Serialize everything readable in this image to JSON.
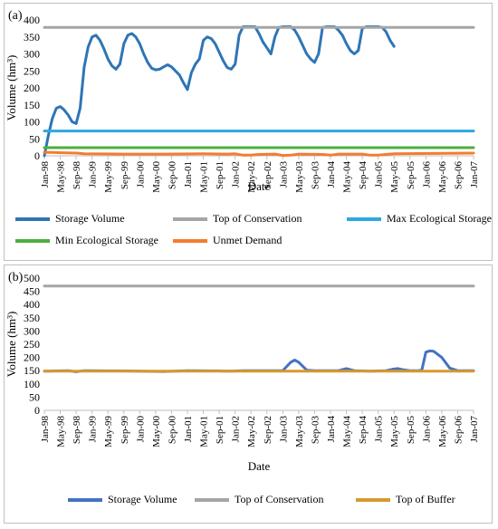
{
  "chart_data": [
    {
      "panel_label": "(a)",
      "type": "line",
      "xlabel": "Date",
      "ylabel": "Volume (hm³)",
      "ylim": [
        0,
        400
      ],
      "yticks": [
        0,
        50,
        100,
        150,
        200,
        250,
        300,
        350,
        400
      ],
      "x_tick_labels": [
        "Jan-98",
        "May-98",
        "Sep-98",
        "Jan-99",
        "May-99",
        "Sep-99",
        "Jan-00",
        "May-00",
        "Sep-00",
        "Jan-01",
        "May-01",
        "Sep-01",
        "Jan-02",
        "May-02",
        "Sep-02",
        "Jan-03",
        "May-03",
        "Sep-03",
        "Jan-04",
        "May-04",
        "Sep-04",
        "Jan-05",
        "May-05",
        "Sep-05",
        "Jan-06",
        "May-06",
        "Sep-06",
        "Jan-07"
      ],
      "grid": false,
      "legend_position": "bottom",
      "series": [
        {
          "name": "Storage Volume",
          "color": "#2e75b6",
          "values": [
            [
              0,
              0
            ],
            [
              1,
              60
            ],
            [
              2,
              110
            ],
            [
              3,
              140
            ],
            [
              4,
              145
            ],
            [
              5,
              135
            ],
            [
              6,
              120
            ],
            [
              7,
              100
            ],
            [
              8,
              95
            ],
            [
              9,
              140
            ],
            [
              10,
              260
            ],
            [
              11,
              320
            ],
            [
              12,
              350
            ],
            [
              13,
              355
            ],
            [
              14,
              340
            ],
            [
              15,
              315
            ],
            [
              16,
              285
            ],
            [
              17,
              265
            ],
            [
              18,
              255
            ],
            [
              19,
              270
            ],
            [
              20,
              330
            ],
            [
              21,
              355
            ],
            [
              22,
              360
            ],
            [
              23,
              350
            ],
            [
              24,
              330
            ],
            [
              25,
              300
            ],
            [
              26,
              275
            ],
            [
              27,
              258
            ],
            [
              28,
              253
            ],
            [
              29,
              255
            ],
            [
              30,
              262
            ],
            [
              31,
              268
            ],
            [
              32,
              262
            ],
            [
              33,
              250
            ],
            [
              34,
              238
            ],
            [
              35,
              215
            ],
            [
              36,
              195
            ],
            [
              37,
              245
            ],
            [
              38,
              270
            ],
            [
              39,
              285
            ],
            [
              40,
              340
            ],
            [
              41,
              350
            ],
            [
              42,
              345
            ],
            [
              43,
              330
            ],
            [
              44,
              305
            ],
            [
              45,
              280
            ],
            [
              46,
              260
            ],
            [
              47,
              255
            ],
            [
              48,
              270
            ],
            [
              49,
              355
            ],
            [
              50,
              380
            ],
            [
              51,
              380
            ],
            [
              52,
              380
            ],
            [
              53,
              380
            ],
            [
              54,
              360
            ],
            [
              55,
              335
            ],
            [
              56,
              318
            ],
            [
              57,
              300
            ],
            [
              58,
              350
            ],
            [
              59,
              378
            ],
            [
              60,
              380
            ],
            [
              61,
              380
            ],
            [
              62,
              380
            ],
            [
              63,
              370
            ],
            [
              64,
              350
            ],
            [
              65,
              325
            ],
            [
              66,
              300
            ],
            [
              67,
              285
            ],
            [
              68,
              275
            ],
            [
              69,
              300
            ],
            [
              70,
              378
            ],
            [
              71,
              380
            ],
            [
              72,
              380
            ],
            [
              73,
              380
            ],
            [
              74,
              370
            ],
            [
              75,
              355
            ],
            [
              76,
              330
            ],
            [
              77,
              310
            ],
            [
              78,
              300
            ],
            [
              79,
              310
            ],
            [
              80,
              375
            ],
            [
              81,
              380
            ],
            [
              82,
              380
            ],
            [
              83,
              380
            ],
            [
              84,
              380
            ],
            [
              85,
              378
            ],
            [
              86,
              365
            ],
            [
              87,
              340
            ],
            [
              88,
              322
            ]
          ]
        },
        {
          "name": "Top of Conservation",
          "color": "#a5a5a5",
          "values": [
            [
              0,
              378
            ],
            [
              108,
              378
            ]
          ]
        },
        {
          "name": "Max Ecological Storage",
          "color": "#2ea8e0",
          "values": [
            [
              0,
              73
            ],
            [
              108,
              73
            ]
          ]
        },
        {
          "name": "Min Ecological Storage",
          "color": "#4caf3f",
          "values": [
            [
              0,
              24
            ],
            [
              108,
              24
            ]
          ]
        },
        {
          "name": "Unmet Demand",
          "color": "#f47c30",
          "values": [
            [
              0,
              10
            ],
            [
              2,
              10
            ],
            [
              4,
              9
            ],
            [
              8,
              8
            ],
            [
              10,
              6
            ],
            [
              20,
              5
            ],
            [
              30,
              5
            ],
            [
              40,
              6
            ],
            [
              46,
              5
            ],
            [
              48,
              6
            ],
            [
              50,
              2
            ],
            [
              52,
              2
            ],
            [
              54,
              4
            ],
            [
              58,
              5
            ],
            [
              60,
              1
            ],
            [
              62,
              2
            ],
            [
              64,
              5
            ],
            [
              70,
              4
            ],
            [
              72,
              2
            ],
            [
              74,
              5
            ],
            [
              80,
              5
            ],
            [
              82,
              2
            ],
            [
              84,
              2
            ],
            [
              86,
              4
            ],
            [
              88,
              6
            ],
            [
              108,
              8
            ]
          ]
        }
      ]
    },
    {
      "panel_label": "(b)",
      "type": "line",
      "xlabel": "Date",
      "ylabel": "Volume (hm³)",
      "ylim": [
        0,
        500
      ],
      "yticks": [
        0,
        50,
        100,
        150,
        200,
        250,
        300,
        350,
        400,
        450,
        500
      ],
      "x_tick_labels": [
        "Jan-98",
        "May-98",
        "Sep-98",
        "Jan-99",
        "May-99",
        "Sep-99",
        "Jan-00",
        "May-00",
        "Sep-00",
        "Jan-01",
        "May-01",
        "Sep-01",
        "Jan-02",
        "May-02",
        "Sep-02",
        "Jan-03",
        "May-03",
        "Sep-03",
        "Jan-04",
        "May-04",
        "Sep-04",
        "Jan-05",
        "May-05",
        "Sep-05",
        "Jan-06",
        "May-06",
        "Sep-06",
        "Jan-07"
      ],
      "grid": false,
      "legend_position": "bottom",
      "series": [
        {
          "name": "Storage Volume",
          "color": "#4472c4",
          "values": [
            [
              0,
              148
            ],
            [
              6,
              150
            ],
            [
              8,
              146
            ],
            [
              10,
              150
            ],
            [
              20,
              149
            ],
            [
              24,
              148
            ],
            [
              30,
              147
            ],
            [
              36,
              150
            ],
            [
              44,
              149
            ],
            [
              46,
              148
            ],
            [
              50,
              150
            ],
            [
              60,
              150
            ],
            [
              62,
              182
            ],
            [
              63,
              190
            ],
            [
              64,
              182
            ],
            [
              66,
              152
            ],
            [
              68,
              150
            ],
            [
              74,
              150
            ],
            [
              76,
              158
            ],
            [
              78,
              150
            ],
            [
              82,
              148
            ],
            [
              86,
              150
            ],
            [
              88,
              156
            ],
            [
              89,
              158
            ],
            [
              90,
              154
            ],
            [
              92,
              150
            ],
            [
              94,
              150
            ],
            [
              95,
              152
            ],
            [
              96,
              220
            ],
            [
              97,
              225
            ],
            [
              98,
              223
            ],
            [
              100,
              200
            ],
            [
              102,
              160
            ],
            [
              104,
              150
            ],
            [
              108,
              150
            ]
          ]
        },
        {
          "name": "Top of Conservation",
          "color": "#a5a5a5",
          "values": [
            [
              0,
              470
            ],
            [
              108,
              470
            ]
          ]
        },
        {
          "name": "Top of Buffer",
          "color": "#d69a2d",
          "values": [
            [
              0,
              148
            ],
            [
              108,
              148
            ]
          ]
        }
      ]
    }
  ]
}
